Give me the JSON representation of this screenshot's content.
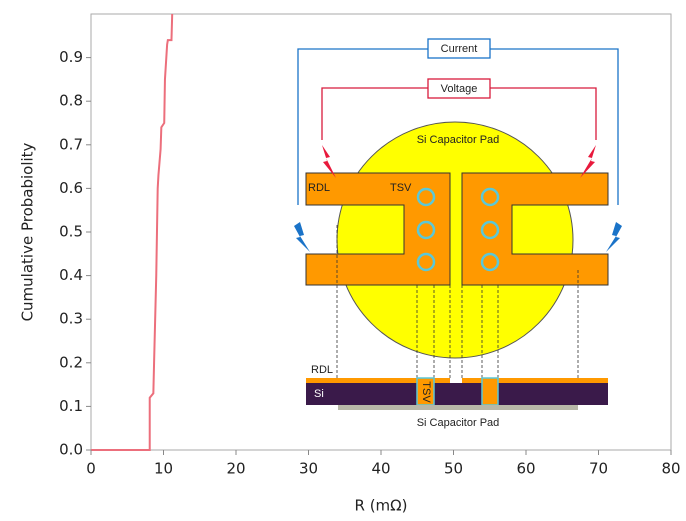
{
  "chart_data": {
    "type": "line",
    "y_label": "Cumulative Probabiolity",
    "x_label": "R (mΩ)",
    "x": [
      0,
      8.1,
      8.1,
      8.6,
      8.7,
      9.0,
      9.2,
      9.3,
      9.6,
      9.7,
      10.1,
      10.2,
      10.5,
      10.6,
      11.1,
      11.2
    ],
    "series": [
      {
        "color": "#ec6f7c",
        "values": [
          0,
          0,
          0.12,
          0.13,
          0.2,
          0.4,
          0.6,
          0.63,
          0.69,
          0.74,
          0.75,
          0.85,
          0.93,
          0.94,
          0.94,
          1.0
        ]
      }
    ],
    "xlim": [
      0,
      80
    ],
    "xticks": [
      0,
      10,
      20,
      30,
      40,
      50,
      60,
      70,
      80
    ],
    "ylim": [
      0,
      1.0
    ],
    "yticks": [
      {
        "value": 0,
        "label": "0.0"
      },
      0.1,
      0.2,
      0.3,
      0.4,
      0.5,
      0.6,
      0.7,
      0.8,
      0.9
    ],
    "annotations": [
      "Current",
      "Voltage",
      "Si Capacitor Pad",
      "RDL",
      "TSV",
      "RDL",
      "Si",
      "TSV",
      "Si Capacitor Pad"
    ]
  }
}
